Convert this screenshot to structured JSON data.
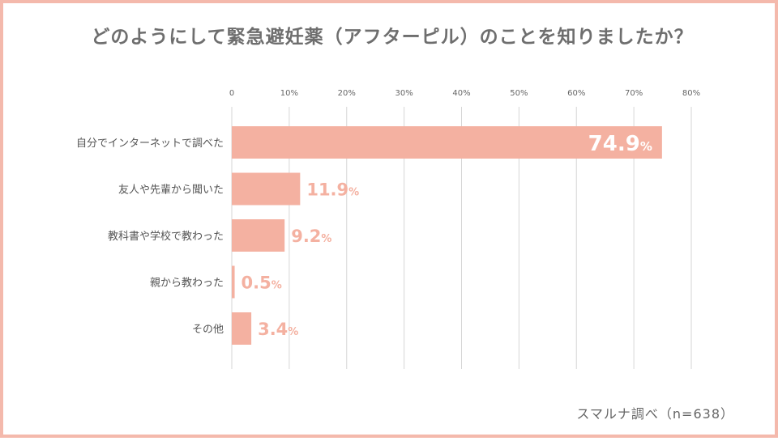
{
  "title": "どのようにして緊急避妊薬（アフターピル）のことを知りましたか？",
  "source": "スマルナ調べ（n=638）",
  "chart_data": {
    "type": "bar",
    "orientation": "horizontal",
    "title": "どのようにして緊急避妊薬（アフターピル）のことを知りましたか？",
    "categories": [
      "自分でインターネットで調べた",
      "友人や先輩から聞いた",
      "教科書や学校で教わった",
      "親から教わった",
      "その他"
    ],
    "values": [
      74.9,
      11.9,
      9.2,
      0.5,
      3.4
    ],
    "value_labels": [
      "74.9",
      "11.9",
      "9.2",
      "0.5",
      "3.4"
    ],
    "value_suffix": "%",
    "xlim": [
      0,
      80
    ],
    "xticks": [
      0,
      10,
      20,
      30,
      40,
      50,
      60,
      70,
      80
    ],
    "xtick_labels": [
      "0",
      "10%",
      "20%",
      "30%",
      "40%",
      "50%",
      "60%",
      "70%",
      "80%"
    ],
    "grid": true,
    "bar_color": "#f4b1a1",
    "label_color": "#f4b1a1",
    "inside_label_color": "#ffffff"
  }
}
